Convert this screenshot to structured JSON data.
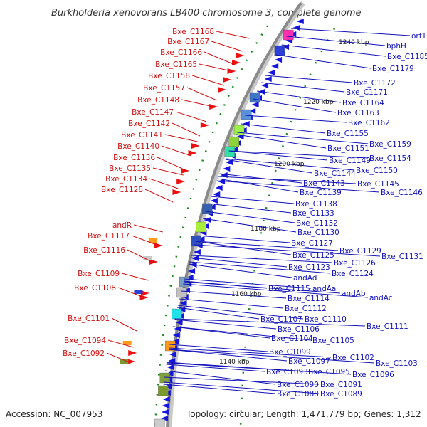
{
  "title": "Burkholderia xenovorans LB400 chromosome 3, complete genome",
  "footer": {
    "accession": "Accession: NC_007953",
    "summary": "Topology: circular; Length: 1,471,779 bp; Genes: 1,312"
  },
  "colors": {
    "forward_label": "#d01010",
    "reverse_label": "#1212b8",
    "backbone": "#808080",
    "feature_green": "#1e8a1e"
  },
  "ticks": [
    "1240 kbp",
    "1220 kbp",
    "1200 kbp",
    "1180 kbp",
    "1160 kbp",
    "1140 kbp"
  ],
  "labels_left": [
    "Bxe_C1168",
    "Bxe_C1167",
    "Bxe_C1166",
    "Bxe_C1165",
    "Bxe_C1158",
    "Bxe_C1157",
    "Bxe_C1148",
    "Bxe_C1147",
    "Bxe_C1142",
    "Bxe_C1141",
    "Bxe_C1140",
    "Bxe_C1136",
    "Bxe_C1135",
    "Bxe_C1134",
    "Bxe_C1128",
    "andR",
    "Bxe_C1117",
    "Bxe_C1116",
    "Bxe_C1109",
    "Bxe_C1108",
    "Bxe_C1101",
    "Bxe_C1094",
    "Bxe_C1092"
  ],
  "labels_right": [
    "orf1",
    "bphH",
    "1240 kbp",
    "Bxe_C1185",
    "Bxe_C1179",
    "Bxe_C1172",
    "Bxe_C1171",
    "Bxe_C1164",
    "Bxe_C1163",
    "Bxe_C1162",
    "Bxe_C1155",
    "Bxe_C1159",
    "Bxe_C1151",
    "Bxe_C1154",
    "Bxe_C1149",
    "Bxe_C1150",
    "Bxe_C1144",
    "Bxe_C1145",
    "Bxe_C1143",
    "Bxe_C1146",
    "Bxe_C1139",
    "Bxe_C1138",
    "Bxe_C1133",
    "Bxe_C1132",
    "Bxe_C1130",
    "Bxe_C1127",
    "Bxe_C1129",
    "Bxe_C1131",
    "Bxe_C1125",
    "Bxe_C1126",
    "Bxe_C1123",
    "Bxe_C1124",
    "andAd",
    "Bxe_C1115",
    "andAa",
    "andAb",
    "andAc",
    "Bxe_C1114",
    "Bxe_C1112",
    "Bxe_C1107",
    "Bxe_C1110",
    "Bxe_C1111",
    "Bxe_C1106",
    "Bxe_C1104",
    "Bxe_C1105",
    "Bxe_C1099",
    "Bxe_C1102",
    "Bxe_C1097",
    "Bxe_C1103",
    "Bxe_C1093",
    "Bxe_C1095",
    "Bxe_C1096",
    "Bxe_C1090",
    "Bxe_C1091",
    "Bxe_C1088",
    "Bxe_C1089"
  ]
}
